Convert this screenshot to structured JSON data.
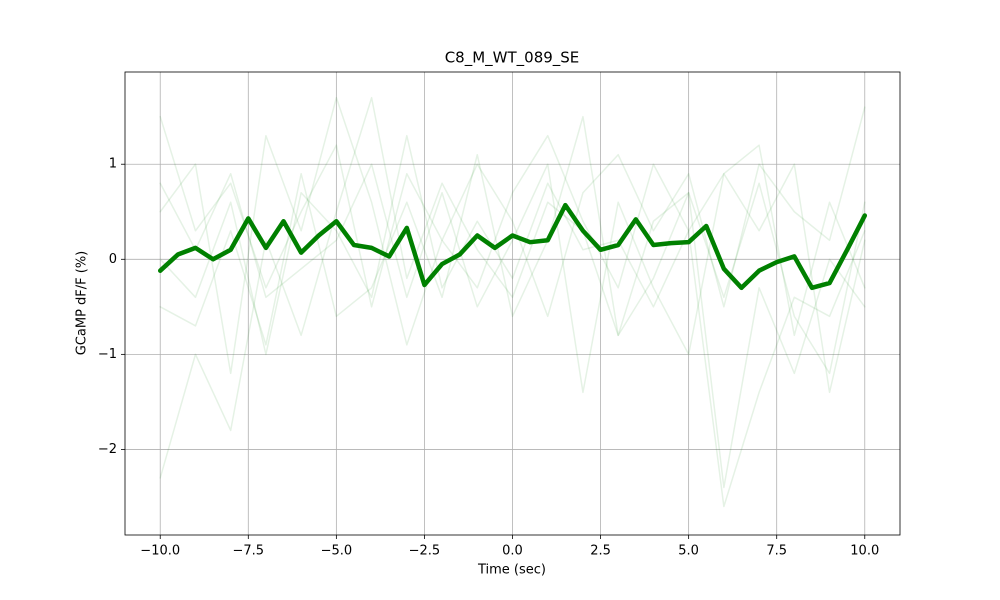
{
  "chart_data": {
    "type": "line",
    "title": "C8_M_WT_089_SE",
    "x_label": "Time (sec)",
    "y_label": "GCaMP dF/F (%)",
    "xlim": [
      -11,
      11
    ],
    "ylim": [
      -2.9,
      1.97
    ],
    "xticks": [
      {
        "value": -10,
        "label": "−10.0"
      },
      {
        "value": -7.5,
        "label": "−7.5"
      },
      {
        "value": -5,
        "label": "−5.0"
      },
      {
        "value": -2.5,
        "label": "−2.5"
      },
      {
        "value": 0,
        "label": "0.0"
      },
      {
        "value": 2.5,
        "label": "2.5"
      },
      {
        "value": 5,
        "label": "5.0"
      },
      {
        "value": 7.5,
        "label": "7.5"
      },
      {
        "value": 10,
        "label": "10.0"
      }
    ],
    "yticks": [
      {
        "value": -2,
        "label": "−2"
      },
      {
        "value": -1,
        "label": "−1"
      },
      0,
      1
    ],
    "grid": true,
    "series": [
      {
        "color": "#008000",
        "opacity": 0.1,
        "width": 1.5,
        "x": [
          -10,
          -9,
          -8,
          -7,
          -6,
          -5,
          -4,
          -3,
          -2,
          -1,
          0,
          1,
          2,
          3,
          4,
          5,
          6,
          7,
          8,
          9,
          10
        ],
        "values": [
          1.5,
          0.3,
          0.8,
          -0.3,
          0.5,
          1.2,
          -0.5,
          0.9,
          0.2,
          1.0,
          0.4,
          -0.6,
          0.7,
          1.1,
          0.3,
          0.9,
          -0.5,
          1.0,
          0.5,
          0.2,
          1.6
        ]
      },
      {
        "color": "#008000",
        "opacity": 0.1,
        "width": 1.5,
        "x": [
          -10,
          -9,
          -8,
          -7,
          -6,
          -5,
          -4,
          -3,
          -2,
          -1,
          0,
          1,
          2,
          3,
          4,
          5,
          6,
          7,
          8,
          9,
          10
        ],
        "values": [
          -2.3,
          -1.0,
          -1.8,
          0.2,
          -0.8,
          0.5,
          1.7,
          -0.2,
          0.8,
          0.1,
          -0.4,
          0.6,
          0.3,
          -0.8,
          -0.2,
          0.7,
          -2.4,
          -0.3,
          -1.2,
          0.0,
          -0.5
        ]
      },
      {
        "color": "#008000",
        "opacity": 0.1,
        "width": 1.5,
        "x": [
          -10,
          -9,
          -8,
          -7,
          -6,
          -5,
          -4,
          -3,
          -2,
          -1,
          0,
          1,
          2,
          3,
          4,
          5,
          6,
          7,
          8,
          9,
          10
        ],
        "values": [
          0.5,
          1.0,
          -1.2,
          1.3,
          0.3,
          1.7,
          0.6,
          -0.9,
          0.2,
          -0.3,
          0.7,
          1.3,
          0.4,
          -0.3,
          1.0,
          0.3,
          -2.6,
          -1.4,
          -0.4,
          -0.6,
          0.3
        ]
      },
      {
        "color": "#008000",
        "opacity": 0.1,
        "width": 1.5,
        "x": [
          -10,
          -9,
          -8,
          -7,
          -6,
          -5,
          -4,
          -3,
          -2,
          -1,
          0,
          1,
          2,
          3,
          4,
          5,
          6,
          7,
          8,
          9,
          10
        ],
        "values": [
          -0.5,
          -0.7,
          0.3,
          -0.9,
          0.9,
          -0.6,
          -0.3,
          0.6,
          -0.4,
          1.1,
          -0.6,
          0.2,
          1.5,
          -0.8,
          0.4,
          0.7,
          -0.4,
          0.8,
          -0.6,
          -1.2,
          0.6
        ]
      },
      {
        "color": "#008000",
        "opacity": 0.1,
        "width": 1.5,
        "x": [
          -10,
          -9,
          -8,
          -7,
          -6,
          -5,
          -4,
          -3,
          -2,
          -1,
          0,
          1,
          2,
          3,
          4,
          5,
          6,
          7,
          8,
          9,
          10
        ],
        "values": [
          0.8,
          0.1,
          0.9,
          -0.4,
          -0.1,
          0.2,
          1.0,
          -0.4,
          0.7,
          -0.5,
          0.2,
          1.0,
          -1.4,
          0.6,
          -0.3,
          -1.0,
          0.9,
          0.3,
          1.0,
          -1.4,
          0.2
        ]
      },
      {
        "color": "#008000",
        "opacity": 0.1,
        "width": 1.5,
        "x": [
          -10,
          -9,
          -8,
          -7,
          -6,
          -5,
          -4,
          -3,
          -2,
          -1,
          0,
          1,
          2,
          3,
          4,
          5,
          6,
          7,
          8,
          9,
          10
        ],
        "values": [
          0.0,
          -0.4,
          0.6,
          -1.0,
          0.7,
          0.3,
          -0.4,
          1.3,
          -0.3,
          0.4,
          -0.2,
          0.8,
          0.1,
          0.2,
          -0.5,
          0.3,
          0.9,
          1.2,
          -0.8,
          0.6,
          -0.3
        ]
      },
      {
        "color": "#008000",
        "opacity": 1,
        "width": 4.5,
        "x": [
          -10,
          -9.5,
          -9,
          -8.5,
          -8,
          -7.5,
          -7,
          -6.5,
          -6,
          -5.5,
          -5,
          -4.5,
          -4,
          -3.5,
          -3,
          -2.5,
          -2,
          -1.5,
          -1,
          -0.5,
          0,
          0.5,
          1,
          1.5,
          2,
          2.5,
          3,
          3.5,
          4,
          4.5,
          5,
          5.5,
          6,
          6.5,
          7,
          7.5,
          8,
          8.5,
          9,
          9.5,
          10
        ],
        "values": [
          -0.12,
          0.05,
          0.12,
          0.0,
          0.1,
          0.43,
          0.12,
          0.4,
          0.07,
          0.25,
          0.4,
          0.15,
          0.12,
          0.03,
          0.33,
          -0.27,
          -0.05,
          0.05,
          0.25,
          0.12,
          0.25,
          0.18,
          0.2,
          0.57,
          0.3,
          0.1,
          0.15,
          0.42,
          0.15,
          0.17,
          0.18,
          0.35,
          -0.1,
          -0.3,
          -0.12,
          -0.03,
          0.03,
          -0.3,
          -0.25,
          0.1,
          0.46
        ]
      }
    ]
  }
}
